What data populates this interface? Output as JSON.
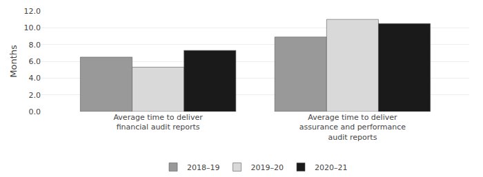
{
  "chart_data": {
    "type": "bar",
    "categories": [
      "Average time to deliver\nfinancial audit reports",
      "Average time to deliver\nassurance and performance\naudit reports"
    ],
    "series": [
      {
        "name": "2018–19",
        "color": "#999999",
        "values": [
          6.5,
          8.9
        ]
      },
      {
        "name": "2019–20",
        "color": "#d9d9d9",
        "values": [
          5.3,
          11.0
        ]
      },
      {
        "name": "2020–21",
        "color": "#1a1a1a",
        "values": [
          7.3,
          10.5
        ]
      }
    ],
    "ylabel": "Months",
    "ylim": [
      0,
      12.0
    ],
    "yticks": [
      {
        "value": 0,
        "label": "0.0"
      },
      {
        "value": 2,
        "label": "2.0"
      },
      {
        "value": 4,
        "label": "4.0"
      },
      {
        "value": 6,
        "label": "6.0"
      },
      {
        "value": 8,
        "label": "8.0"
      },
      {
        "value": 10,
        "label": "10.0"
      },
      {
        "value": 12,
        "label": "12.0"
      }
    ],
    "grid": true,
    "legend": "bottom"
  }
}
